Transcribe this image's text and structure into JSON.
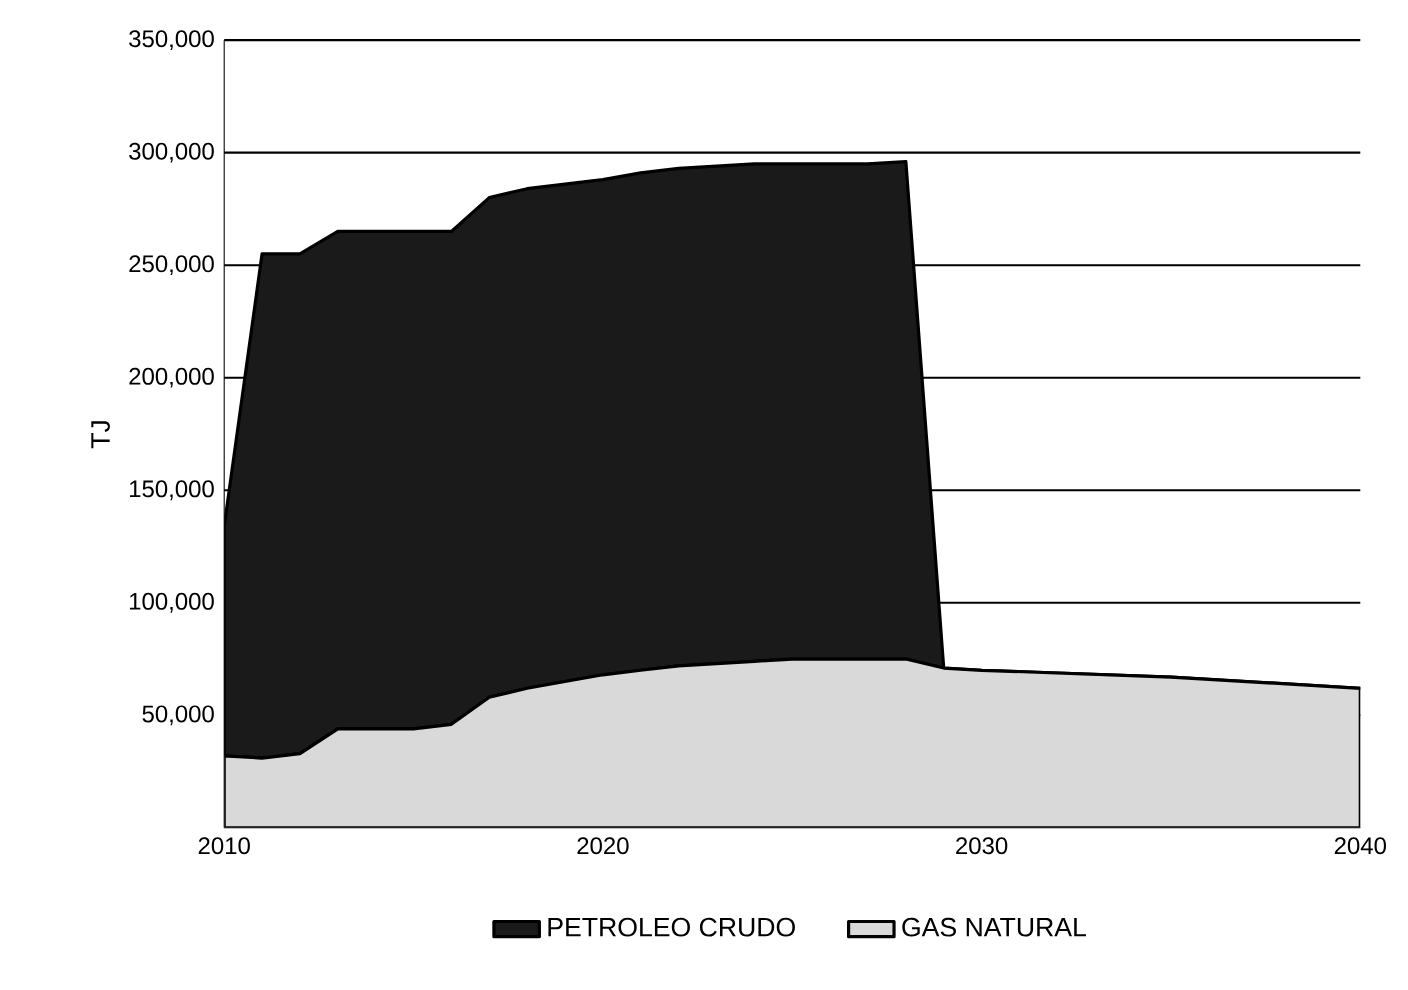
{
  "chart_data": {
    "type": "area",
    "stacked": true,
    "ylabel": "TJ",
    "x": [
      2010,
      2011,
      2012,
      2013,
      2014,
      2015,
      2016,
      2017,
      2018,
      2019,
      2020,
      2021,
      2022,
      2023,
      2024,
      2025,
      2026,
      2027,
      2028,
      2029,
      2030,
      2035,
      2040
    ],
    "series": [
      {
        "name": "GAS NATURAL",
        "color": "#d9d9d9",
        "values": [
          32000,
          31000,
          33000,
          44000,
          44000,
          44000,
          46000,
          58000,
          62000,
          65000,
          68000,
          70000,
          72000,
          73000,
          74000,
          75000,
          75000,
          75000,
          75000,
          71000,
          70000,
          67000,
          62000
        ]
      },
      {
        "name": "PETROLEO CRUDO",
        "color": "#1a1a1a",
        "values": [
          102000,
          224000,
          222000,
          221000,
          221000,
          221000,
          219000,
          222000,
          222000,
          221000,
          220000,
          221000,
          221000,
          221000,
          221000,
          220000,
          220000,
          220000,
          221000,
          0,
          0,
          0,
          0
        ]
      }
    ],
    "xlim": [
      2010,
      2040
    ],
    "xticks": [
      2010,
      2020,
      2030,
      2040
    ],
    "ylim": [
      0,
      350000
    ],
    "yticks": [
      {
        "value": 50000,
        "label": "50,000"
      },
      {
        "value": 100000,
        "label": "100,000"
      },
      {
        "value": 150000,
        "label": "150,000"
      },
      {
        "value": 200000,
        "label": "200,000"
      },
      {
        "value": 250000,
        "label": "250,000"
      },
      {
        "value": 300000,
        "label": "300,000"
      },
      {
        "value": 350000,
        "label": "350,000"
      }
    ],
    "grid": "y",
    "legend": "bottom"
  }
}
